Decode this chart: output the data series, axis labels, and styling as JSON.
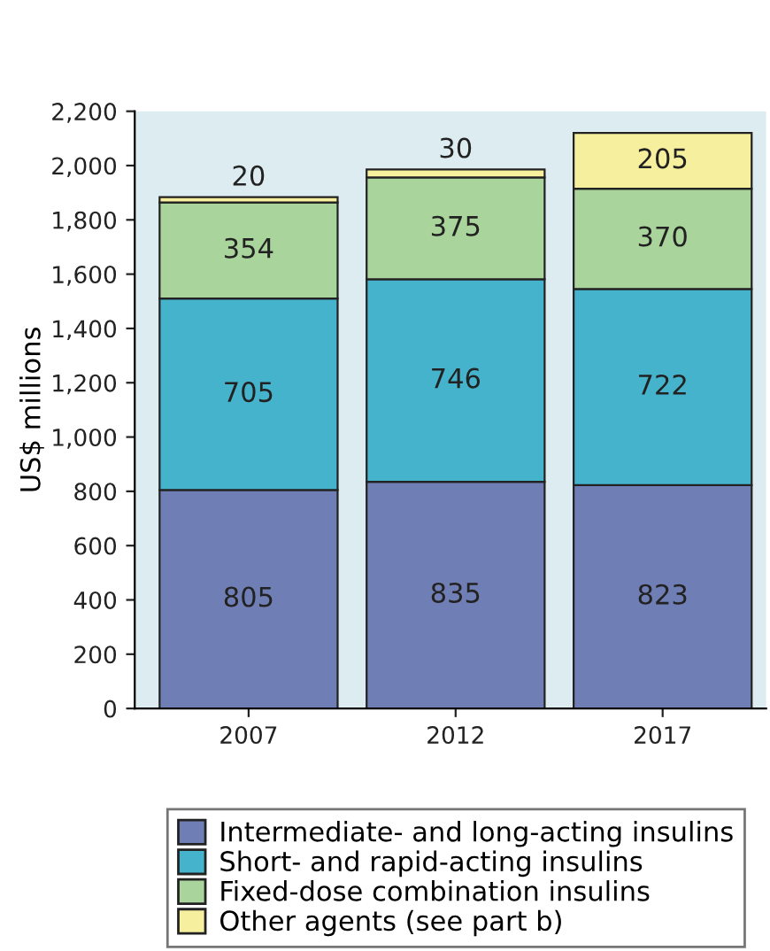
{
  "chart_data": {
    "type": "bar",
    "stacked": true,
    "ylabel": "US$ millions",
    "categories": [
      "2007",
      "2012",
      "2017"
    ],
    "series": [
      {
        "name": "Intermediate- and long-acting insulins",
        "color": "#6f7fb5",
        "values": [
          805,
          835,
          823
        ]
      },
      {
        "name": "Short- and rapid-acting insulins",
        "color": "#45b3cc",
        "values": [
          705,
          746,
          722
        ]
      },
      {
        "name": "Fixed-dose combination insulins",
        "color": "#a9d49c",
        "values": [
          354,
          375,
          370
        ]
      },
      {
        "name": "Other agents (see part b)",
        "color": "#f6ef9e",
        "values": [
          20,
          30,
          205
        ]
      }
    ],
    "ylim": [
      0,
      2200
    ],
    "yticks": [
      {
        "value": 0,
        "label": "0"
      },
      {
        "value": 200,
        "label": "200"
      },
      {
        "value": 400,
        "label": "400"
      },
      {
        "value": 600,
        "label": "600"
      },
      {
        "value": 800,
        "label": "800"
      },
      {
        "value": 1000,
        "label": "1,000"
      },
      {
        "value": 1200,
        "label": "1,200"
      },
      {
        "value": 1400,
        "label": "1,400"
      },
      {
        "value": 1600,
        "label": "1,600"
      },
      {
        "value": 1800,
        "label": "1,800"
      },
      {
        "value": 2000,
        "label": "2,000"
      },
      {
        "value": 2200,
        "label": "2,200"
      }
    ],
    "data_labels": true,
    "legend": "bottom",
    "grid": false
  }
}
